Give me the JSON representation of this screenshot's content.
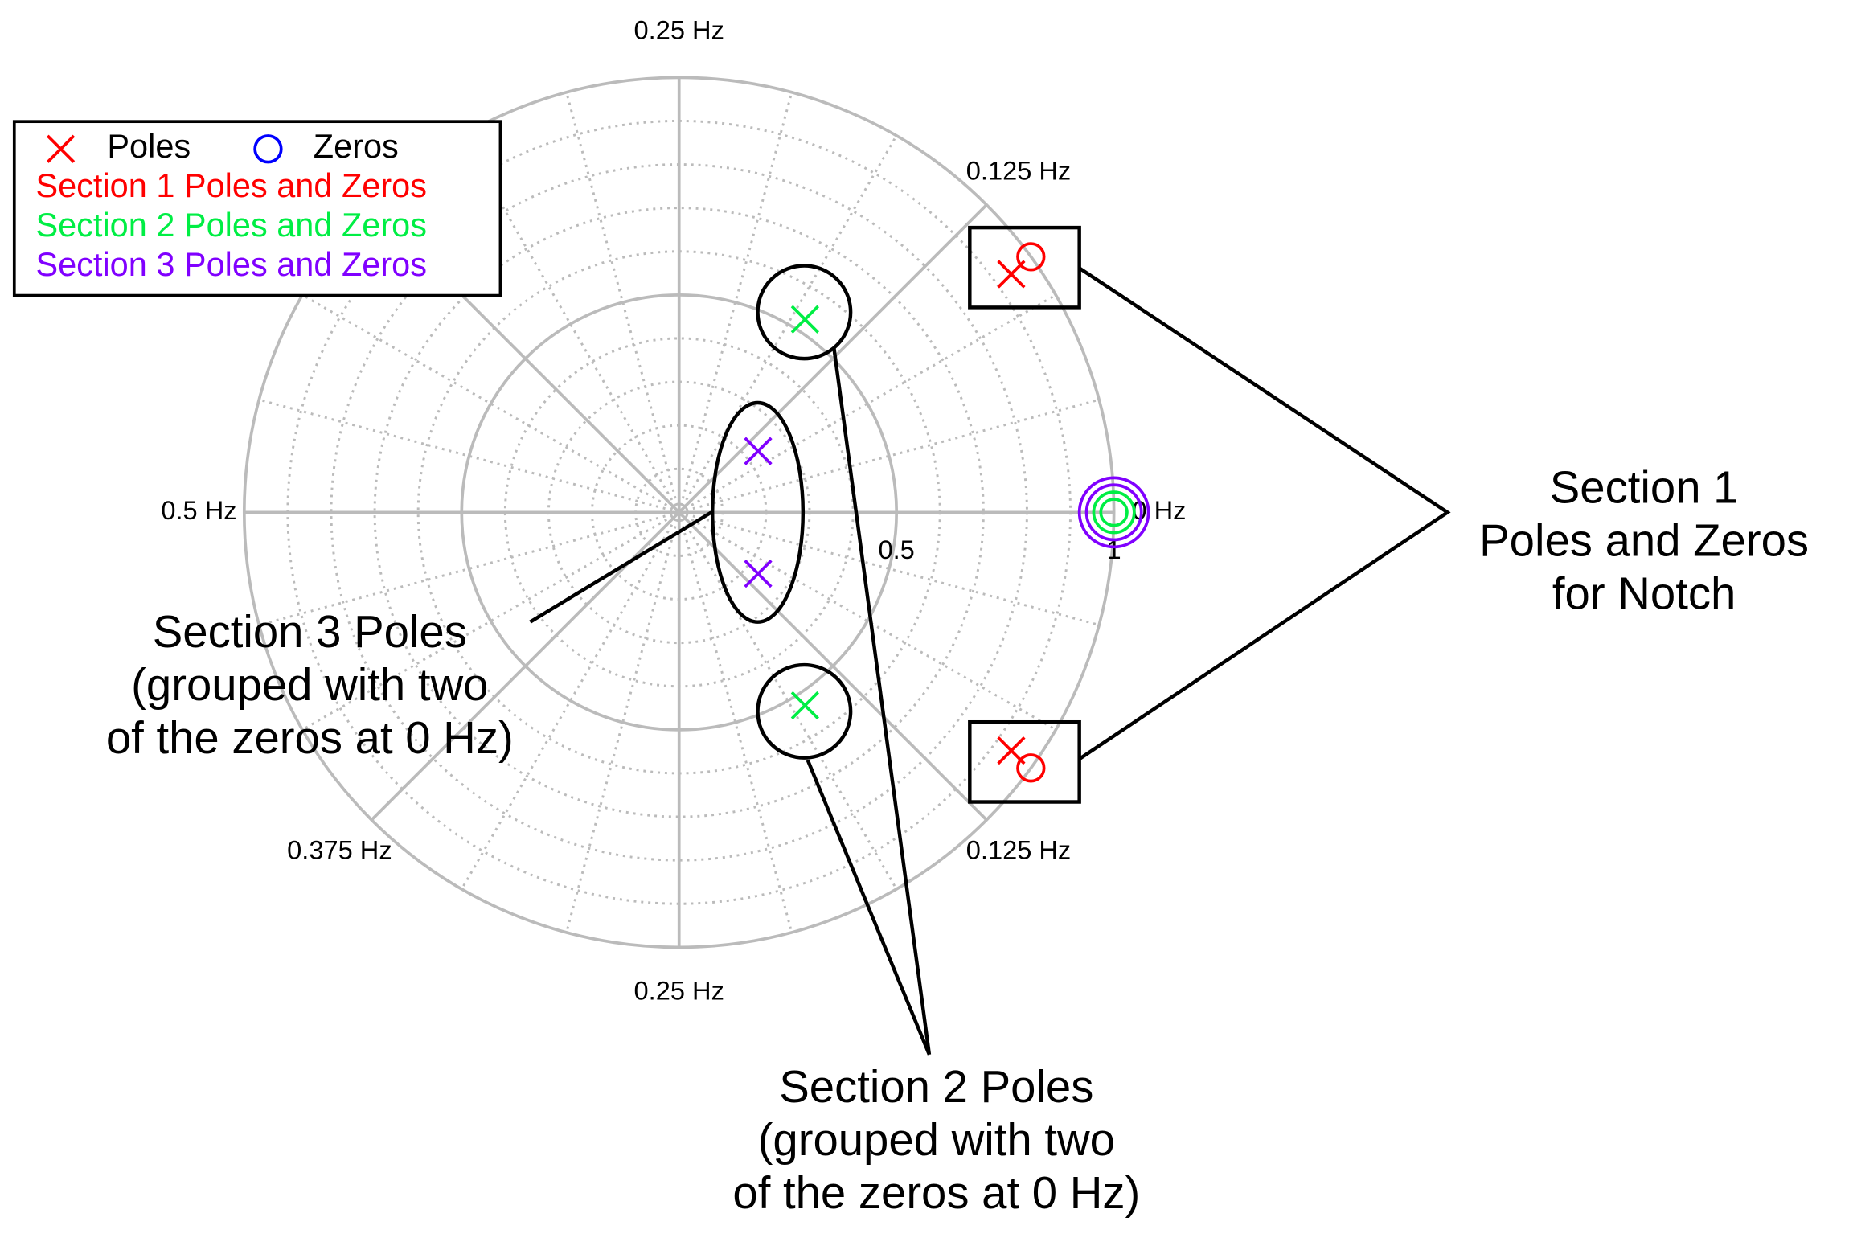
{
  "chart_data": {
    "type": "polar",
    "rticks": [
      0.5,
      1
    ],
    "minor_rticks": [
      0.1,
      0.2,
      0.3,
      0.4,
      0.6,
      0.7,
      0.8,
      0.9
    ],
    "theta_ticks": [
      {
        "value": 0.25,
        "label": "0.25 Hz"
      },
      {
        "value": 0.125,
        "label": "0.125 Hz"
      },
      {
        "value": 0,
        "label": "0 Hz"
      },
      {
        "value": -0.125,
        "label": "0.125 Hz"
      },
      {
        "value": -0.25,
        "label": "0.25 Hz"
      },
      {
        "value": -0.375,
        "label": "0.375 Hz"
      },
      {
        "value": 0.5,
        "label": "0.5 Hz"
      }
    ],
    "theta_grid": [
      0,
      0.125,
      0.25,
      0.375,
      0.5,
      -0.125,
      -0.25,
      -0.375
    ],
    "theta_minor_grid": [
      0.0417,
      0.0833,
      0.1667,
      0.2083,
      0.2917,
      0.3333,
      0.4167,
      0.4583,
      -0.0417,
      -0.0833,
      -0.1667,
      -0.2083,
      -0.2917,
      -0.3333,
      -0.4167,
      -0.4583
    ],
    "legend": {
      "poles": "Poles",
      "zeros": "Zeros",
      "poles_color": "#ff0000",
      "zeros_color": "#0000ff"
    },
    "series": [
      {
        "name": "Section 1 Poles and Zeros",
        "color": "#ff0000",
        "poles_r": [
          0.94,
          0.94
        ],
        "poles_f": [
          0.099,
          -0.099
        ],
        "zeros_r": [
          1,
          1
        ],
        "zeros_f": [
          0.1,
          -0.1
        ]
      },
      {
        "name": "Section 2 Poles and Zeros",
        "color": "#00ee44",
        "poles_r": [
          0.53,
          0.53
        ],
        "poles_f": [
          0.158,
          -0.158
        ],
        "zeros_r": [
          1,
          1
        ],
        "zeros_f": [
          0,
          0
        ]
      },
      {
        "name": "Section 3 Poles and Zeros",
        "color": "#8000ff",
        "poles_r": [
          0.23,
          0.23
        ],
        "poles_f": [
          0.105,
          -0.105
        ],
        "zeros_r": [
          1,
          1
        ],
        "zeros_f": [
          0,
          0
        ]
      }
    ],
    "annotations": [
      {
        "lines": [
          "Section 1",
          "Poles and Zeros",
          "for Notch"
        ]
      },
      {
        "lines": [
          "Section 2 Poles",
          "(grouped with two",
          "of the zeros at 0 Hz)"
        ]
      },
      {
        "lines": [
          "Section 3 Poles",
          "(grouped with two",
          "of the zeros at 0 Hz)"
        ]
      }
    ]
  }
}
